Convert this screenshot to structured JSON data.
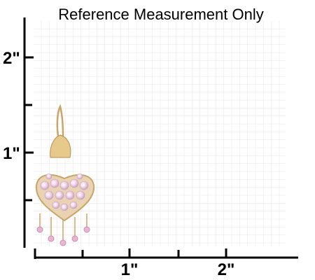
{
  "title": "Reference Measurement Only",
  "y_labels": [
    "2\"",
    "1\""
  ],
  "x_labels": [
    "1\"",
    "2\""
  ]
}
